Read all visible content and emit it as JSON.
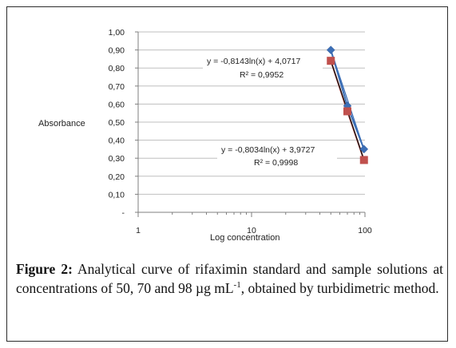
{
  "chart_data": {
    "type": "scatter",
    "xlabel": "Log concentration",
    "ylabel": "Absorbance",
    "x_scale": "log",
    "xlim": [
      1,
      100
    ],
    "ylim": [
      0,
      1.0
    ],
    "x_ticks": [
      "1",
      "10",
      "100"
    ],
    "y_ticks": [
      "-",
      "0,10",
      "0,20",
      "0,30",
      "0,40",
      "0,50",
      "0,60",
      "0,70",
      "0,80",
      "0,90",
      "1,00"
    ],
    "grid": "horizontal",
    "series": [
      {
        "x": [
          50,
          70,
          98
        ],
        "y": [
          0.9,
          0.59,
          0.35
        ],
        "marker": "diamond",
        "color": "#3c6fb6",
        "trend_color": "#3c6fb6",
        "equation": "y = -0,8143ln(x) + 4,0717",
        "r2": "R² = 0,9952"
      },
      {
        "x": [
          50,
          70,
          98
        ],
        "y": [
          0.84,
          0.56,
          0.29
        ],
        "marker": "square",
        "color": "#c0504d",
        "trend_color": "#111111",
        "equation": "y = -0,8034ln(x) + 3,9727",
        "r2": "R² = 0,9998"
      }
    ]
  },
  "caption": {
    "label": "Figure 2:",
    "text_before_sup": " Analytical curve of rifaximin standard and sample solutions at concentrations of 50, 70 and 98 µg mL",
    "sup": "-1",
    "text_after_sup": ", obtained by turbidimetric method."
  }
}
